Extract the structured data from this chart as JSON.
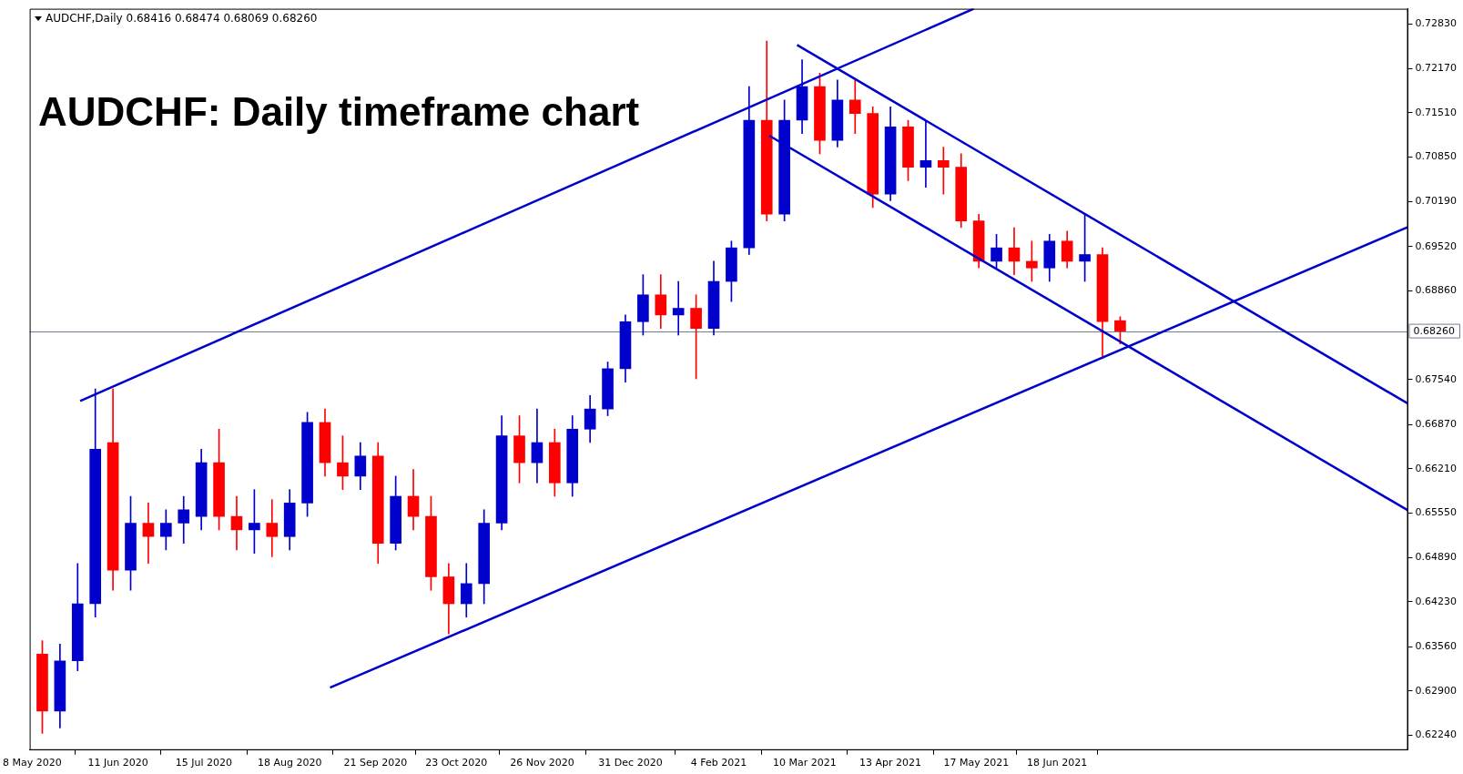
{
  "chart_data": {
    "type": "candlestick",
    "title": "AUDCHF: Daily timeframe chart",
    "annotations": [
      "AUDCHF,Daily  0.68416 0.68474 0.68069 0.68260"
    ],
    "x": [
      "2020-05-12",
      "2020-05-19",
      "2020-05-26",
      "2020-06-02",
      "2020-06-09",
      "2020-06-16",
      "2020-06-23",
      "2020-06-30",
      "2020-07-07",
      "2020-07-14",
      "2020-07-21",
      "2020-07-28",
      "2020-08-04",
      "2020-08-11",
      "2020-08-18",
      "2020-08-25",
      "2020-09-01",
      "2020-09-08",
      "2020-09-15",
      "2020-09-22",
      "2020-09-29",
      "2020-10-06",
      "2020-10-13",
      "2020-10-20",
      "2020-10-27",
      "2020-11-03",
      "2020-11-10",
      "2020-11-17",
      "2020-11-24",
      "2020-12-01",
      "2020-12-08",
      "2020-12-15",
      "2020-12-22",
      "2020-12-29",
      "2021-01-05",
      "2021-01-12",
      "2021-01-19",
      "2021-01-26",
      "2021-02-02",
      "2021-02-09",
      "2021-02-16",
      "2021-02-23",
      "2021-03-02",
      "2021-03-09",
      "2021-03-16",
      "2021-03-23",
      "2021-03-30",
      "2021-04-06",
      "2021-04-13",
      "2021-04-20",
      "2021-04-27",
      "2021-05-04",
      "2021-05-11",
      "2021-05-18",
      "2021-05-25",
      "2021-06-01",
      "2021-06-08",
      "2021-06-15",
      "2021-06-22",
      "2021-06-29",
      "2021-07-06",
      "2021-07-13"
    ],
    "ohlc": [
      [
        0.6345,
        0.6365,
        0.6227,
        0.626
      ],
      [
        0.626,
        0.636,
        0.6235,
        0.6335
      ],
      [
        0.6335,
        0.648,
        0.632,
        0.642
      ],
      [
        0.642,
        0.674,
        0.64,
        0.665
      ],
      [
        0.666,
        0.674,
        0.644,
        0.647
      ],
      [
        0.647,
        0.658,
        0.644,
        0.654
      ],
      [
        0.654,
        0.657,
        0.648,
        0.652
      ],
      [
        0.652,
        0.656,
        0.65,
        0.654
      ],
      [
        0.654,
        0.658,
        0.651,
        0.656
      ],
      [
        0.655,
        0.665,
        0.653,
        0.663
      ],
      [
        0.663,
        0.668,
        0.653,
        0.655
      ],
      [
        0.655,
        0.658,
        0.65,
        0.653
      ],
      [
        0.653,
        0.659,
        0.6495,
        0.654
      ],
      [
        0.654,
        0.6575,
        0.649,
        0.652
      ],
      [
        0.652,
        0.659,
        0.65,
        0.657
      ],
      [
        0.657,
        0.6705,
        0.655,
        0.669
      ],
      [
        0.669,
        0.671,
        0.661,
        0.663
      ],
      [
        0.663,
        0.667,
        0.659,
        0.661
      ],
      [
        0.661,
        0.666,
        0.659,
        0.664
      ],
      [
        0.664,
        0.666,
        0.648,
        0.651
      ],
      [
        0.651,
        0.661,
        0.65,
        0.658
      ],
      [
        0.658,
        0.662,
        0.653,
        0.655
      ],
      [
        0.655,
        0.658,
        0.644,
        0.646
      ],
      [
        0.646,
        0.648,
        0.6375,
        0.642
      ],
      [
        0.642,
        0.648,
        0.64,
        0.645
      ],
      [
        0.645,
        0.656,
        0.642,
        0.654
      ],
      [
        0.654,
        0.67,
        0.653,
        0.667
      ],
      [
        0.667,
        0.67,
        0.66,
        0.663
      ],
      [
        0.663,
        0.671,
        0.66,
        0.666
      ],
      [
        0.666,
        0.668,
        0.658,
        0.66
      ],
      [
        0.66,
        0.67,
        0.658,
        0.668
      ],
      [
        0.668,
        0.673,
        0.666,
        0.671
      ],
      [
        0.671,
        0.678,
        0.67,
        0.677
      ],
      [
        0.677,
        0.685,
        0.675,
        0.684
      ],
      [
        0.684,
        0.691,
        0.682,
        0.688
      ],
      [
        0.688,
        0.691,
        0.683,
        0.685
      ],
      [
        0.685,
        0.69,
        0.682,
        0.686
      ],
      [
        0.686,
        0.688,
        0.6755,
        0.683
      ],
      [
        0.683,
        0.693,
        0.682,
        0.69
      ],
      [
        0.69,
        0.696,
        0.687,
        0.695
      ],
      [
        0.695,
        0.719,
        0.694,
        0.714
      ],
      [
        0.714,
        0.7258,
        0.699,
        0.7
      ],
      [
        0.7,
        0.717,
        0.699,
        0.714
      ],
      [
        0.714,
        0.723,
        0.712,
        0.719
      ],
      [
        0.719,
        0.721,
        0.709,
        0.711
      ],
      [
        0.711,
        0.72,
        0.71,
        0.717
      ],
      [
        0.717,
        0.72,
        0.712,
        0.715
      ],
      [
        0.715,
        0.716,
        0.701,
        0.703
      ],
      [
        0.703,
        0.716,
        0.702,
        0.713
      ],
      [
        0.713,
        0.714,
        0.705,
        0.707
      ],
      [
        0.707,
        0.714,
        0.704,
        0.708
      ],
      [
        0.708,
        0.71,
        0.703,
        0.707
      ],
      [
        0.707,
        0.709,
        0.698,
        0.699
      ],
      [
        0.699,
        0.7,
        0.692,
        0.693
      ],
      [
        0.693,
        0.697,
        0.692,
        0.695
      ],
      [
        0.695,
        0.698,
        0.691,
        0.693
      ],
      [
        0.693,
        0.696,
        0.69,
        0.692
      ],
      [
        0.692,
        0.697,
        0.69,
        0.696
      ],
      [
        0.696,
        0.6975,
        0.692,
        0.693
      ],
      [
        0.693,
        0.7,
        0.69,
        0.694
      ],
      [
        0.694,
        0.695,
        0.6785,
        0.684
      ],
      [
        0.68416,
        0.68474,
        0.68069,
        0.6826
      ]
    ],
    "colors": [
      "#ff0000",
      "#0000cc",
      "#0000cc",
      "#0000cc",
      "#ff0000",
      "#0000cc",
      "#ff0000",
      "#0000cc",
      "#0000cc",
      "#0000cc",
      "#ff0000",
      "#ff0000",
      "#0000cc",
      "#ff0000",
      "#0000cc",
      "#0000cc",
      "#ff0000",
      "#ff0000",
      "#0000cc",
      "#ff0000",
      "#0000cc",
      "#ff0000",
      "#ff0000",
      "#ff0000",
      "#0000cc",
      "#0000cc",
      "#0000cc",
      "#ff0000",
      "#0000cc",
      "#ff0000",
      "#0000cc",
      "#0000cc",
      "#0000cc",
      "#0000cc",
      "#0000cc",
      "#ff0000",
      "#0000cc",
      "#ff0000",
      "#0000cc",
      "#0000cc",
      "#0000cc",
      "#ff0000",
      "#0000cc",
      "#0000cc",
      "#ff0000",
      "#0000cc",
      "#ff0000",
      "#ff0000",
      "#0000cc",
      "#ff0000",
      "#0000cc",
      "#ff0000",
      "#ff0000",
      "#ff0000",
      "#0000cc",
      "#ff0000",
      "#ff0000",
      "#0000cc",
      "#ff0000",
      "#0000cc",
      "#ff0000",
      "#ff0000"
    ],
    "series": [
      {
        "type": "line",
        "color": "#0000cc",
        "x": [
          "2020-05-27",
          "2021-05-16"
        ],
        "values": [
          0.6722,
          0.7306
        ]
      },
      {
        "type": "line",
        "color": "#0000cc",
        "x": [
          "2020-09-03",
          "2021-11-04"
        ],
        "values": [
          0.6295,
          0.6981
        ]
      },
      {
        "type": "line",
        "color": "#0000cc",
        "x": [
          "2021-03-07",
          "2021-11-04"
        ],
        "values": [
          0.7252,
          0.6718
        ]
      },
      {
        "type": "line",
        "color": "#0000cc",
        "x": [
          "2021-02-24",
          "2021-11-04"
        ],
        "values": [
          0.7117,
          0.6559
        ]
      }
    ],
    "ref_lines": [
      {
        "axis": "y",
        "value": 0.6826,
        "label": "0.68260",
        "color": "#708090"
      }
    ],
    "xlim": [
      "2020-05-07",
      "2021-11-04"
    ],
    "xticks": [
      {
        "value": "2020-05-08",
        "label": "8 May 2020"
      },
      {
        "value": "2020-06-11",
        "label": "11 Jun 2020"
      },
      {
        "value": "2020-07-15",
        "label": "15 Jul 2020"
      },
      {
        "value": "2020-08-18",
        "label": "18 Aug 2020"
      },
      {
        "value": "2020-09-21",
        "label": "21 Sep 2020"
      },
      {
        "value": "2020-10-23",
        "label": "23 Oct 2020"
      },
      {
        "value": "2020-11-26",
        "label": "26 Nov 2020"
      },
      {
        "value": "2020-12-31",
        "label": "31 Dec 2020"
      },
      {
        "value": "2021-02-04",
        "label": "4 Feb 2021"
      },
      {
        "value": "2021-03-10",
        "label": "10 Mar 2021"
      },
      {
        "value": "2021-04-13",
        "label": "13 Apr 2021"
      },
      {
        "value": "2021-05-17",
        "label": "17 May 2021"
      },
      {
        "value": "2021-06-18",
        "label": "18 Jun 2021"
      }
    ],
    "ylim": [
      0.6202,
      0.7306
    ],
    "yticks": [
      {
        "value": 0.6224,
        "label": "0.62240"
      },
      {
        "value": 0.629,
        "label": "0.62900"
      },
      {
        "value": 0.6356,
        "label": "0.63560"
      },
      {
        "value": 0.6423,
        "label": "0.64230"
      },
      {
        "value": 0.6489,
        "label": "0.64890"
      },
      {
        "value": 0.6555,
        "label": "0.65550"
      },
      {
        "value": 0.6621,
        "label": "0.66210"
      },
      {
        "value": 0.6687,
        "label": "0.66870"
      },
      {
        "value": 0.6754,
        "label": "0.67540"
      },
      {
        "value": 0.6886,
        "label": "0.68860"
      },
      {
        "value": 0.6952,
        "label": "0.69520"
      },
      {
        "value": 0.7019,
        "label": "0.70190"
      },
      {
        "value": 0.7085,
        "label": "0.70850"
      },
      {
        "value": 0.7151,
        "label": "0.71510"
      },
      {
        "value": 0.7217,
        "label": "0.72170"
      },
      {
        "value": 0.7283,
        "label": "0.72830"
      }
    ],
    "grid": false,
    "legend": false
  }
}
